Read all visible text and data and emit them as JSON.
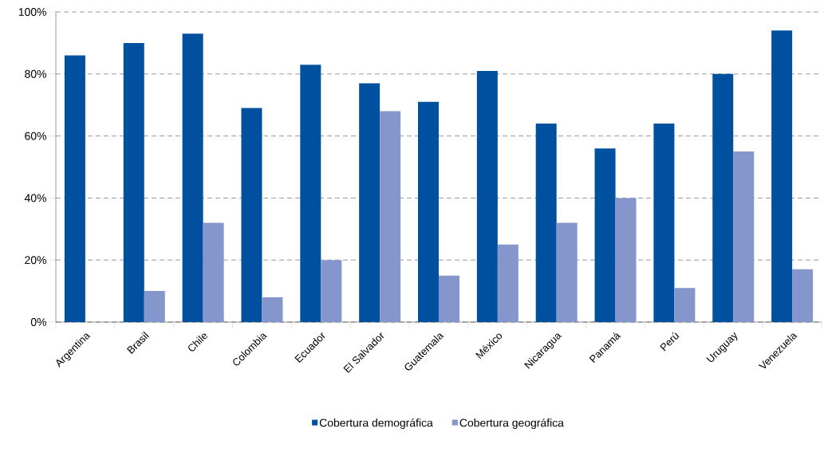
{
  "chart_data": {
    "type": "bar",
    "categories": [
      "Argentina",
      "Brasil",
      "Chile",
      "Colombia",
      "Ecuador",
      "El Salvador",
      "Guatemala",
      "México",
      "Nicaragua",
      "Panamá",
      "Perú",
      "Uruguay",
      "Venezuela"
    ],
    "series": [
      {
        "name": "Cobertura demográfica",
        "color": "#0050a0",
        "values": [
          86,
          90,
          93,
          69,
          83,
          77,
          71,
          81,
          64,
          56,
          64,
          80,
          94
        ]
      },
      {
        "name": "Cobertura geográfica",
        "color": "#8496cc",
        "values": [
          null,
          10,
          32,
          8,
          20,
          68,
          15,
          25,
          32,
          40,
          11,
          55,
          17
        ]
      }
    ],
    "ylim": [
      0,
      100
    ],
    "yticks": [
      {
        "value": 0,
        "label": "0%"
      },
      {
        "value": 20,
        "label": "20%"
      },
      {
        "value": 40,
        "label": "40%"
      },
      {
        "value": 60,
        "label": "60%"
      },
      {
        "value": 80,
        "label": "80%"
      },
      {
        "value": 100,
        "label": "100%"
      }
    ],
    "grid": "y",
    "legend": "bottom"
  }
}
